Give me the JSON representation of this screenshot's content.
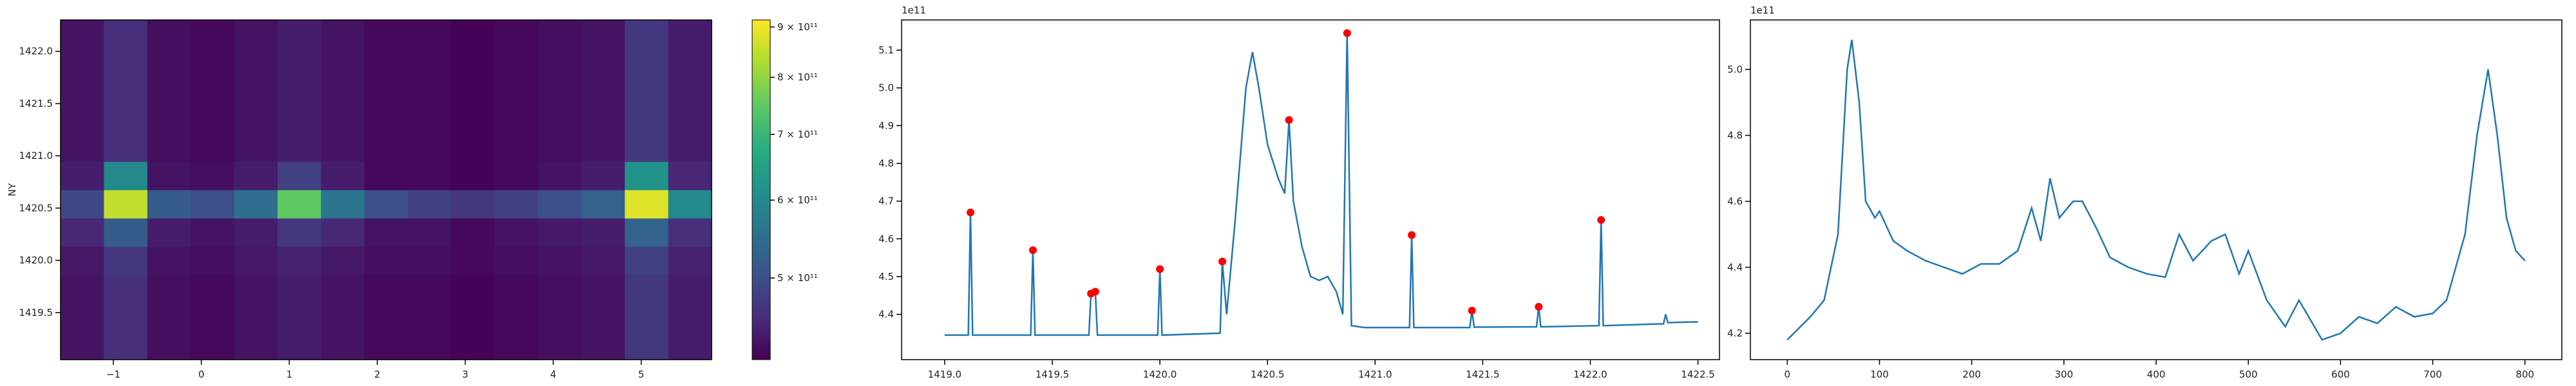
{
  "chart_data": [
    {
      "type": "heatmap",
      "ylabel": "NY",
      "xlim": [
        -1.6,
        5.8
      ],
      "ylim": [
        1419.05,
        1422.3
      ],
      "xticks": [
        {
          "value": -1,
          "label": "−1"
        },
        0,
        1,
        2,
        3,
        4,
        5
      ],
      "yticks": [
        1419.5,
        {
          "value": 1420,
          "label": "1420.0"
        },
        1420.5,
        {
          "value": 1421,
          "label": "1421.0"
        },
        1421.5,
        {
          "value": 1422,
          "label": "1422.0"
        }
      ],
      "colorscale": "viridis",
      "clim": [
        413000000000.0,
        915000000000.0
      ],
      "colorbar_log": true,
      "colorbar_ticks": [
        {
          "value": 500000000000.0,
          "label": "5 × 10¹¹"
        },
        {
          "value": 600000000000.0,
          "label": "6 × 10¹¹"
        },
        {
          "value": 700000000000.0,
          "label": "7 × 10¹¹"
        },
        {
          "value": 800000000000.0,
          "label": "8 × 10¹¹"
        },
        {
          "value": 900000000000.0,
          "label": "9 × 10¹¹"
        }
      ],
      "z": [
        [
          430000000000.0,
          460000000000.0,
          425000000000.0,
          420000000000.0,
          430000000000.0,
          440000000000.0,
          430000000000.0,
          420000000000.0,
          420000000000.0,
          415000000000.0,
          420000000000.0,
          425000000000.0,
          430000000000.0,
          470000000000.0,
          440000000000.0
        ],
        [
          430000000000.0,
          460000000000.0,
          425000000000.0,
          420000000000.0,
          430000000000.0,
          440000000000.0,
          430000000000.0,
          420000000000.0,
          420000000000.0,
          415000000000.0,
          420000000000.0,
          425000000000.0,
          430000000000.0,
          470000000000.0,
          440000000000.0
        ],
        [
          430000000000.0,
          460000000000.0,
          425000000000.0,
          420000000000.0,
          430000000000.0,
          440000000000.0,
          430000000000.0,
          420000000000.0,
          420000000000.0,
          415000000000.0,
          420000000000.0,
          425000000000.0,
          430000000000.0,
          470000000000.0,
          440000000000.0
        ],
        [
          435000000000.0,
          470000000000.0,
          430000000000.0,
          425000000000.0,
          435000000000.0,
          445000000000.0,
          435000000000.0,
          425000000000.0,
          425000000000.0,
          420000000000.0,
          425000000000.0,
          430000000000.0,
          435000000000.0,
          480000000000.0,
          445000000000.0
        ],
        [
          450000000000.0,
          520000000000.0,
          440000000000.0,
          430000000000.0,
          440000000000.0,
          470000000000.0,
          450000000000.0,
          430000000000.0,
          430000000000.0,
          420000000000.0,
          430000000000.0,
          435000000000.0,
          440000000000.0,
          530000000000.0,
          460000000000.0
        ],
        [
          490000000000.0,
          850000000000.0,
          520000000000.0,
          500000000000.0,
          550000000000.0,
          750000000000.0,
          560000000000.0,
          500000000000.0,
          480000000000.0,
          470000000000.0,
          480000000000.0,
          500000000000.0,
          530000000000.0,
          880000000000.0,
          600000000000.0
        ],
        [
          440000000000.0,
          600000000000.0,
          430000000000.0,
          425000000000.0,
          440000000000.0,
          480000000000.0,
          440000000000.0,
          420000000000.0,
          420000000000.0,
          415000000000.0,
          420000000000.0,
          430000000000.0,
          440000000000.0,
          620000000000.0,
          450000000000.0
        ],
        [
          430000000000.0,
          460000000000.0,
          425000000000.0,
          420000000000.0,
          430000000000.0,
          440000000000.0,
          430000000000.0,
          420000000000.0,
          420000000000.0,
          415000000000.0,
          420000000000.0,
          425000000000.0,
          430000000000.0,
          470000000000.0,
          440000000000.0
        ],
        [
          430000000000.0,
          460000000000.0,
          425000000000.0,
          420000000000.0,
          430000000000.0,
          440000000000.0,
          430000000000.0,
          420000000000.0,
          420000000000.0,
          415000000000.0,
          420000000000.0,
          425000000000.0,
          430000000000.0,
          470000000000.0,
          440000000000.0
        ],
        [
          430000000000.0,
          460000000000.0,
          425000000000.0,
          420000000000.0,
          430000000000.0,
          440000000000.0,
          430000000000.0,
          420000000000.0,
          420000000000.0,
          415000000000.0,
          420000000000.0,
          425000000000.0,
          430000000000.0,
          470000000000.0,
          440000000000.0
        ],
        [
          430000000000.0,
          460000000000.0,
          425000000000.0,
          420000000000.0,
          430000000000.0,
          440000000000.0,
          430000000000.0,
          420000000000.0,
          420000000000.0,
          415000000000.0,
          420000000000.0,
          425000000000.0,
          430000000000.0,
          470000000000.0,
          440000000000.0
        ],
        [
          430000000000.0,
          460000000000.0,
          425000000000.0,
          420000000000.0,
          430000000000.0,
          440000000000.0,
          430000000000.0,
          420000000000.0,
          420000000000.0,
          415000000000.0,
          420000000000.0,
          425000000000.0,
          430000000000.0,
          470000000000.0,
          440000000000.0
        ]
      ]
    },
    {
      "type": "line",
      "offset_text": "1e11",
      "xlim": [
        1418.8,
        1422.6
      ],
      "ylim": [
        4.28,
        5.18
      ],
      "xticks": [
        {
          "value": 1419,
          "label": "1419.0"
        },
        1419.5,
        {
          "value": 1420,
          "label": "1420.0"
        },
        1420.5,
        {
          "value": 1421,
          "label": "1421.0"
        },
        1421.5,
        {
          "value": 1422,
          "label": "1422.0"
        },
        1422.5
      ],
      "yticks": [
        4.4,
        4.5,
        4.6,
        4.7,
        4.8,
        4.9,
        {
          "value": 5,
          "label": "5.0"
        },
        5.1
      ],
      "x": [
        1419.0,
        1419.11,
        1419.12,
        1419.13,
        1419.4,
        1419.41,
        1419.42,
        1419.67,
        1419.68,
        1419.7,
        1419.71,
        1419.99,
        1420.0,
        1420.01,
        1420.28,
        1420.29,
        1420.31,
        1420.35,
        1420.4,
        1420.43,
        1420.46,
        1420.5,
        1420.55,
        1420.58,
        1420.6,
        1420.62,
        1420.66,
        1420.7,
        1420.74,
        1420.78,
        1420.82,
        1420.85,
        1420.87,
        1420.89,
        1420.95,
        1421.16,
        1421.17,
        1421.18,
        1421.44,
        1421.45,
        1421.46,
        1421.75,
        1421.76,
        1421.77,
        1422.04,
        1422.05,
        1422.06,
        1422.34,
        1422.35,
        1422.36,
        1422.5
      ],
      "series": [
        {
          "color": "#1f77b4",
          "values": [
            4.345,
            4.345,
            4.67,
            4.345,
            4.345,
            4.57,
            4.345,
            4.345,
            4.455,
            4.46,
            4.345,
            4.345,
            4.52,
            4.345,
            4.35,
            4.54,
            4.4,
            4.65,
            5.0,
            5.095,
            5.0,
            4.85,
            4.76,
            4.72,
            4.915,
            4.7,
            4.58,
            4.5,
            4.49,
            4.5,
            4.46,
            4.4,
            5.145,
            4.37,
            4.365,
            4.365,
            4.61,
            4.365,
            4.365,
            4.41,
            4.366,
            4.367,
            4.42,
            4.367,
            4.37,
            4.65,
            4.37,
            4.375,
            4.4,
            4.378,
            4.38
          ]
        }
      ],
      "markers": {
        "color": "#ff0000",
        "x": [
          1419.12,
          1419.41,
          1419.68,
          1419.7,
          1420.0,
          1420.29,
          1420.6,
          1420.87,
          1421.17,
          1421.45,
          1421.76,
          1422.05
        ],
        "values": [
          4.67,
          4.57,
          4.455,
          4.46,
          4.52,
          4.54,
          4.915,
          5.145,
          4.61,
          4.41,
          4.42,
          4.65
        ]
      }
    },
    {
      "type": "line",
      "offset_text": "1e11",
      "xlim": [
        -40,
        840
      ],
      "ylim": [
        4.12,
        5.15
      ],
      "xticks": [
        0,
        100,
        200,
        300,
        400,
        500,
        600,
        700,
        800
      ],
      "yticks": [
        4.2,
        4.4,
        4.6,
        4.8,
        {
          "value": 5,
          "label": "5.0"
        }
      ],
      "x": [
        0,
        25,
        40,
        55,
        65,
        70,
        78,
        85,
        95,
        100,
        115,
        130,
        150,
        170,
        190,
        210,
        230,
        250,
        265,
        275,
        285,
        295,
        310,
        320,
        335,
        350,
        370,
        390,
        410,
        425,
        440,
        460,
        475,
        490,
        500,
        520,
        540,
        555,
        580,
        600,
        620,
        640,
        660,
        680,
        700,
        715,
        735,
        748,
        760,
        770,
        780,
        790,
        800
      ],
      "series": [
        {
          "color": "#1f77b4",
          "values": [
            4.18,
            4.25,
            4.3,
            4.5,
            5.0,
            5.09,
            4.9,
            4.6,
            4.55,
            4.57,
            4.48,
            4.45,
            4.42,
            4.4,
            4.38,
            4.41,
            4.41,
            4.45,
            4.58,
            4.48,
            4.67,
            4.55,
            4.6,
            4.6,
            4.52,
            4.43,
            4.4,
            4.38,
            4.37,
            4.5,
            4.42,
            4.48,
            4.5,
            4.38,
            4.45,
            4.3,
            4.22,
            4.3,
            4.18,
            4.2,
            4.25,
            4.23,
            4.28,
            4.25,
            4.26,
            4.3,
            4.5,
            4.8,
            5.0,
            4.8,
            4.55,
            4.45,
            4.42
          ]
        }
      ]
    }
  ]
}
